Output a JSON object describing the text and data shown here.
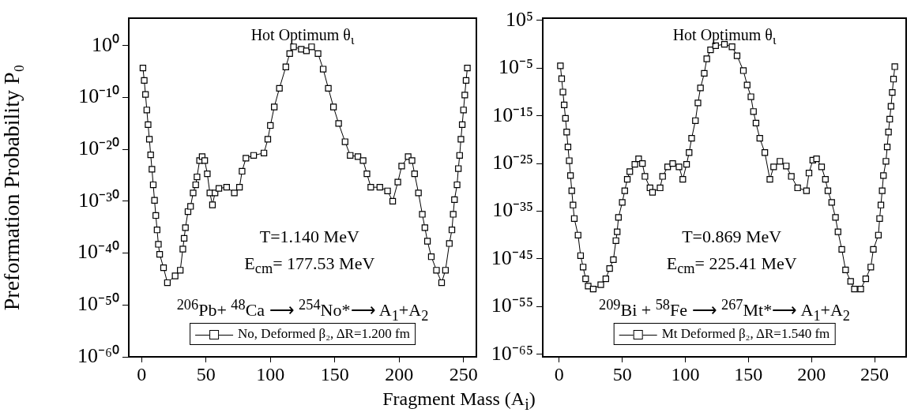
{
  "chart_data": [
    {
      "type": "line",
      "xlabel": "Fragment Mass (A$_{i}$)",
      "ylabel": "Preformation Probability P₀",
      "x": [
        1,
        2,
        3,
        4,
        5,
        6,
        7,
        8,
        9,
        10,
        11,
        12,
        13,
        14,
        17,
        20,
        26,
        30,
        32,
        33,
        34,
        36,
        38,
        40,
        42,
        43,
        45,
        47,
        49,
        51,
        53,
        55,
        57,
        60,
        66,
        72,
        76,
        78,
        81,
        87,
        95,
        98,
        100,
        103,
        107,
        112,
        115,
        118,
        124,
        128,
        132,
        137,
        141,
        145,
        149,
        153,
        158,
        162,
        168,
        172,
        175,
        178,
        185,
        191,
        195,
        199,
        202,
        207,
        210,
        212,
        215,
        218,
        220,
        222,
        225,
        229,
        233,
        236,
        239,
        241,
        242,
        243,
        245,
        246,
        247,
        248,
        249,
        250,
        251,
        252,
        253
      ],
      "series": [
        {
          "name": "No, Deformed β₂, ΔR=1.200 fm",
          "color": "#000000",
          "values": [
            5e-05,
            2e-07,
            4e-10,
            4e-13,
            6e-16,
            9e-19,
            9e-22,
            1.5e-24,
            1.5e-27,
            1.5e-30,
            1.8e-33,
            3e-36,
            5e-39,
            6e-41,
            1.5e-43,
            2e-46,
            4e-45,
            5e-44,
            6e-40,
            7e-38,
            8e-36,
            1e-32,
            1e-31,
            4e-29,
            1.5e-27,
            5e-26,
            7e-23,
            4e-22,
            7e-23,
            2e-25,
            4e-29,
            2e-31,
            4e-29,
            3e-28,
            5e-28,
            4e-29,
            5e-28,
            6e-25,
            2e-22,
            7e-22,
            2e-21,
            9e-19,
            4e-16,
            1.5e-12,
            6e-09,
            8e-05,
            0.03,
            0.6,
            0.2,
            0.1,
            0.6,
            0.03,
            3e-05,
            6e-09,
            1.5e-12,
            1e-15,
            3e-19,
            7e-22,
            4e-22,
            7e-23,
            2e-25,
            5e-28,
            5e-28,
            1e-28,
            1e-30,
            5e-27,
            6e-24,
            4e-22,
            7e-23,
            2e-25,
            4e-29,
            3e-33,
            8e-36,
            2e-38,
            2e-41,
            5e-44,
            2e-46,
            5e-44,
            7e-39,
            3e-36,
            3e-33,
            2e-30,
            1.5e-27,
            2e-24,
            7e-22,
            9e-19,
            6e-16,
            4e-13,
            3e-10,
            2e-07,
            5e-05
          ]
        }
      ],
      "xlim": [
        -10,
        260
      ],
      "xticks": [
        0,
        50,
        100,
        150,
        200,
        250
      ],
      "ylim": [
        1e-60,
        200000.0
      ],
      "log": true,
      "yticks": [
        {
          "value": 1,
          "label": "10⁰"
        },
        {
          "value": 1e-10,
          "label": "10⁻¹⁰"
        },
        {
          "value": 1e-20,
          "label": "10⁻²⁰"
        },
        {
          "value": 1e-30,
          "label": "10⁻³⁰"
        },
        {
          "value": 1e-40,
          "label": "10⁻⁴⁰"
        },
        {
          "value": 1e-50,
          "label": "10⁻⁵⁰"
        },
        {
          "value": 1e-60,
          "label": "10⁻⁶⁰"
        }
      ],
      "marker": "square",
      "line_style": "solid",
      "legend": "bottom",
      "grid": false,
      "annotations": [
        "Hot Optimum θ$_{ι}$",
        "T=1.140 MeV",
        "E$_{cm}$= 177.53 MeV",
        "$^{206}$Pb+ $^{48}$Ca ⟶ $^{254}$No*⟶ A$_{1}$+A$_{2}$"
      ]
    },
    {
      "type": "line",
      "x": [
        1,
        2,
        3,
        4,
        5,
        6,
        7,
        8,
        9,
        10,
        11,
        12,
        15,
        17,
        19,
        21,
        23,
        27,
        33,
        37,
        40,
        43,
        45,
        46,
        47,
        50,
        52,
        54,
        56,
        60,
        63,
        66,
        68,
        72,
        74,
        80,
        82,
        86,
        90,
        95,
        98,
        101,
        103,
        105,
        108,
        110,
        112,
        115,
        117,
        120,
        124,
        131,
        137,
        141,
        146,
        149,
        152,
        154,
        156,
        159,
        163,
        167,
        170,
        175,
        180,
        184,
        189,
        196,
        198,
        201,
        204,
        208,
        211,
        213,
        216,
        219,
        221,
        224,
        227,
        231,
        234,
        239,
        243,
        247,
        249,
        253,
        254,
        255,
        256,
        257,
        259,
        260,
        261,
        262,
        263,
        264,
        265,
        266
      ],
      "series": [
        {
          "name": "Mt Deformed β₂, ΔR=1.540 fm",
          "color": "#000000",
          "values": [
            3e-05,
            6e-08,
            1e-10,
            2e-13,
            3e-16,
            4e-19,
            3e-22,
            4e-25,
            3e-28,
            2e-31,
            2e-34,
            3e-37,
            1e-40,
            5e-45,
            2e-47,
            7e-50,
            2e-51,
            5e-52,
            4e-51,
            7e-50,
            1e-47,
            7e-46,
            7e-42,
            5e-40,
            5e-37,
            7e-34,
            2e-31,
            5e-29,
            2e-27,
            7e-26,
            1e-24,
            1e-25,
            2e-28,
            8e-31,
            9e-32,
            8e-31,
            2e-28,
            2e-26,
            1e-25,
            2e-26,
            5e-29,
            7e-26,
            2e-23,
            2e-20,
            1e-16,
            5e-13,
            7e-10,
            8e-07,
            0.0009,
            0.07,
            0.5,
            1,
            0.3,
            0.004,
            3e-06,
            3e-09,
            1e-11,
            8e-15,
            3e-17,
            2e-20,
            2e-23,
            5e-29,
            2e-26,
            3e-25,
            3e-26,
            2e-28,
            8e-31,
            2e-31,
            1e-27,
            5e-25,
            1e-24,
            2e-26,
            5e-29,
            2e-31,
            7e-34,
            5e-37,
            5e-40,
            1e-43,
            5e-48,
            2e-50,
            5e-52,
            5e-52,
            7e-50,
            2e-47,
            1e-43,
            1e-40,
            3e-37,
            2e-34,
            2e-31,
            3e-28,
            3e-25,
            3e-22,
            4e-19,
            2e-16,
            1e-13,
            8e-11,
            5e-08,
            2e-05
          ]
        }
      ],
      "xlim": [
        -13,
        275
      ],
      "xticks": [
        0,
        50,
        100,
        150,
        200,
        250
      ],
      "ylim": [
        3e-66,
        300000.0
      ],
      "log": true,
      "yticks": [
        {
          "value": 100000.0,
          "label": "10⁵"
        },
        {
          "value": 1e-05,
          "label": "10⁻⁵"
        },
        {
          "value": 1e-15,
          "label": "10⁻¹⁵"
        },
        {
          "value": 1e-25,
          "label": "10⁻²⁵"
        },
        {
          "value": 1e-35,
          "label": "10⁻³⁵"
        },
        {
          "value": 1e-45,
          "label": "10⁻⁴⁵"
        },
        {
          "value": 1e-55,
          "label": "10⁻⁵⁵"
        },
        {
          "value": 1e-65,
          "label": "10⁻⁶⁵"
        }
      ],
      "marker": "square",
      "line_style": "solid",
      "legend": "bottom",
      "grid": false,
      "annotations": [
        "Hot Optimum θ$_{ι}$",
        "T=0.869 MeV",
        "E$_{cm}$= 225.41 MeV",
        "$^{209}$Bi + $^{58}$Fe ⟶ $^{267}$Mt*⟶ A$_{1}$+A$_{2}$"
      ]
    }
  ]
}
